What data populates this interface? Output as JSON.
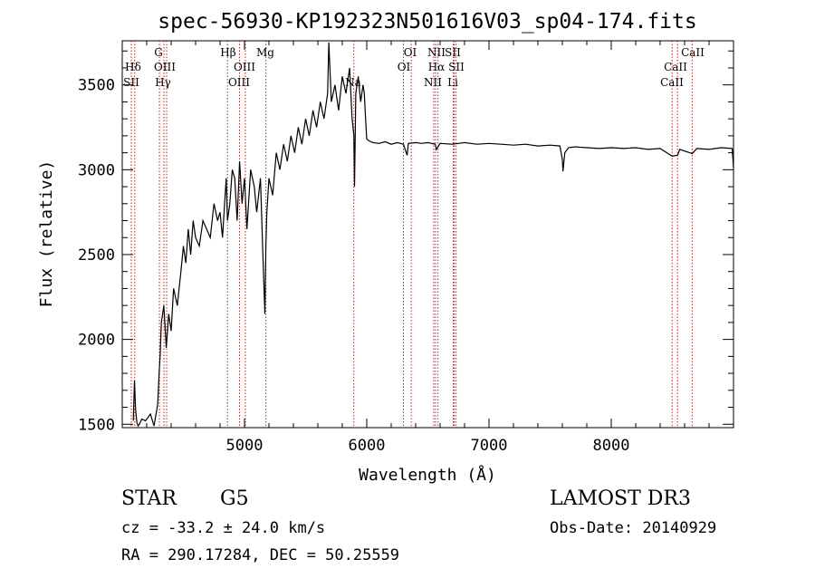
{
  "chart_data": {
    "type": "line",
    "title": "spec-56930-KP192323N501616V03_sp04-174.fits",
    "xlabel": "Wavelength (Å)",
    "ylabel": "Flux (relative)",
    "xlim": [
      4000,
      9000
    ],
    "ylim": [
      1480,
      3760
    ],
    "x_ticks": [
      5000,
      6000,
      7000,
      8000
    ],
    "y_ticks": [
      1500,
      2000,
      2500,
      3000,
      3500
    ],
    "x_tick_labels": [
      "5000",
      "6000",
      "7000",
      "8000"
    ],
    "y_tick_labels": [
      "1500",
      "2000",
      "2500",
      "3000",
      "3500"
    ],
    "grid": false,
    "series": [
      {
        "name": "spectrum",
        "color": "#000000",
        "x": [
          4090,
          4100,
          4110,
          4120,
          4130,
          4140,
          4160,
          4190,
          4230,
          4260,
          4290,
          4300,
          4310,
          4320,
          4340,
          4360,
          4380,
          4400,
          4420,
          4450,
          4480,
          4500,
          4520,
          4540,
          4560,
          4580,
          4600,
          4630,
          4660,
          4690,
          4720,
          4750,
          4780,
          4800,
          4820,
          4850,
          4861,
          4880,
          4900,
          4920,
          4940,
          4960,
          4980,
          5000,
          5020,
          5050,
          5080,
          5100,
          5130,
          5150,
          5167,
          5175,
          5183,
          5200,
          5230,
          5260,
          5290,
          5320,
          5350,
          5380,
          5410,
          5440,
          5470,
          5500,
          5530,
          5560,
          5590,
          5620,
          5650,
          5680,
          5690,
          5710,
          5740,
          5770,
          5800,
          5830,
          5860,
          5880,
          5895,
          5900,
          5910,
          5930,
          5950,
          5970,
          5980,
          5990,
          6000,
          6020,
          6050,
          6100,
          6150,
          6200,
          6250,
          6300,
          6330,
          6340,
          6400,
          6450,
          6500,
          6560,
          6570,
          6600,
          6700,
          6800,
          6900,
          7000,
          7100,
          7200,
          7300,
          7400,
          7500,
          7580,
          7600,
          7605,
          7620,
          7650,
          7700,
          7800,
          7900,
          8000,
          8100,
          8200,
          8300,
          8400,
          8498,
          8542,
          8560,
          8662,
          8700,
          8800,
          8900,
          8990,
          9000
        ],
        "y": [
          1520,
          1760,
          1580,
          1510,
          1490,
          1500,
          1530,
          1520,
          1560,
          1490,
          1620,
          1780,
          1900,
          2100,
          2200,
          1950,
          2150,
          2050,
          2300,
          2200,
          2400,
          2550,
          2450,
          2650,
          2500,
          2700,
          2600,
          2550,
          2700,
          2650,
          2600,
          2800,
          2700,
          2750,
          2600,
          2950,
          2700,
          2800,
          3000,
          2950,
          2700,
          3050,
          2800,
          2950,
          2650,
          3000,
          2900,
          2750,
          2950,
          2500,
          2150,
          2550,
          2750,
          2950,
          2850,
          3100,
          3000,
          3150,
          3050,
          3200,
          3100,
          3250,
          3150,
          3300,
          3200,
          3350,
          3250,
          3400,
          3300,
          3450,
          3750,
          3400,
          3500,
          3350,
          3550,
          3450,
          3600,
          3300,
          3200,
          2900,
          3450,
          3550,
          3400,
          3500,
          3450,
          3300,
          3180,
          3170,
          3160,
          3155,
          3165,
          3150,
          3160,
          3150,
          3085,
          3155,
          3160,
          3155,
          3160,
          3150,
          3120,
          3155,
          3150,
          3160,
          3150,
          3155,
          3150,
          3145,
          3150,
          3140,
          3145,
          3140,
          3060,
          2990,
          3100,
          3130,
          3135,
          3130,
          3125,
          3130,
          3125,
          3130,
          3120,
          3125,
          3080,
          3085,
          3120,
          3095,
          3125,
          3120,
          3130,
          3125,
          3010
        ]
      }
    ],
    "lines": [
      {
        "name": "Hδ",
        "x": 4102
      },
      {
        "name": "SII",
        "x": 4074
      },
      {
        "name": "G",
        "x": 4304
      },
      {
        "name": "OIII",
        "x": 4363
      },
      {
        "name": "Hγ",
        "x": 4341
      },
      {
        "name": "Hβ",
        "x": 4861
      },
      {
        "name": "OIII",
        "x": 4959
      },
      {
        "name": "OIII",
        "x": 5007
      },
      {
        "name": "Mg",
        "x": 5175
      },
      {
        "name": "Na",
        "x": 5894
      },
      {
        "name": "OI",
        "x": 6300
      },
      {
        "name": "OI",
        "x": 6364
      },
      {
        "name": "NII",
        "x": 6548
      },
      {
        "name": "Hα",
        "x": 6563
      },
      {
        "name": "NII",
        "x": 6583
      },
      {
        "name": "SII",
        "x": 6716
      },
      {
        "name": "SII",
        "x": 6731
      },
      {
        "name": "Li",
        "x": 6708
      },
      {
        "name": "CaII",
        "x": 8498
      },
      {
        "name": "CaII",
        "x": 8542
      },
      {
        "name": "CaII",
        "x": 8662
      }
    ],
    "annotations": [
      {
        "text": "Hδ"
      },
      {
        "text": "SII"
      },
      {
        "text": "G"
      },
      {
        "text": "OIII"
      },
      {
        "text": "Hγ"
      },
      {
        "text": "Hβ"
      },
      {
        "text": "OIII"
      },
      {
        "text": "OIII"
      },
      {
        "text": "Mg"
      },
      {
        "text": "Na"
      },
      {
        "text": "OI"
      },
      {
        "text": "OI"
      },
      {
        "text": "NII"
      },
      {
        "text": "SII"
      },
      {
        "text": "Hα"
      },
      {
        "text": "SII"
      },
      {
        "text": "NII"
      },
      {
        "text": "Li"
      },
      {
        "text": "CaII"
      },
      {
        "text": "CaII"
      },
      {
        "text": "CaII"
      }
    ]
  },
  "info": {
    "object_class": "STAR",
    "subclass": "G5",
    "survey": "LAMOST DR3",
    "redshift": "cz = -33.2 ± 24.0 km/s",
    "obs_date": "Obs-Date: 20140929",
    "coords": "RA = 290.17284, DEC =  50.25559"
  },
  "colors": {
    "line_marker": "#b22222",
    "spectrum": "#000000"
  }
}
